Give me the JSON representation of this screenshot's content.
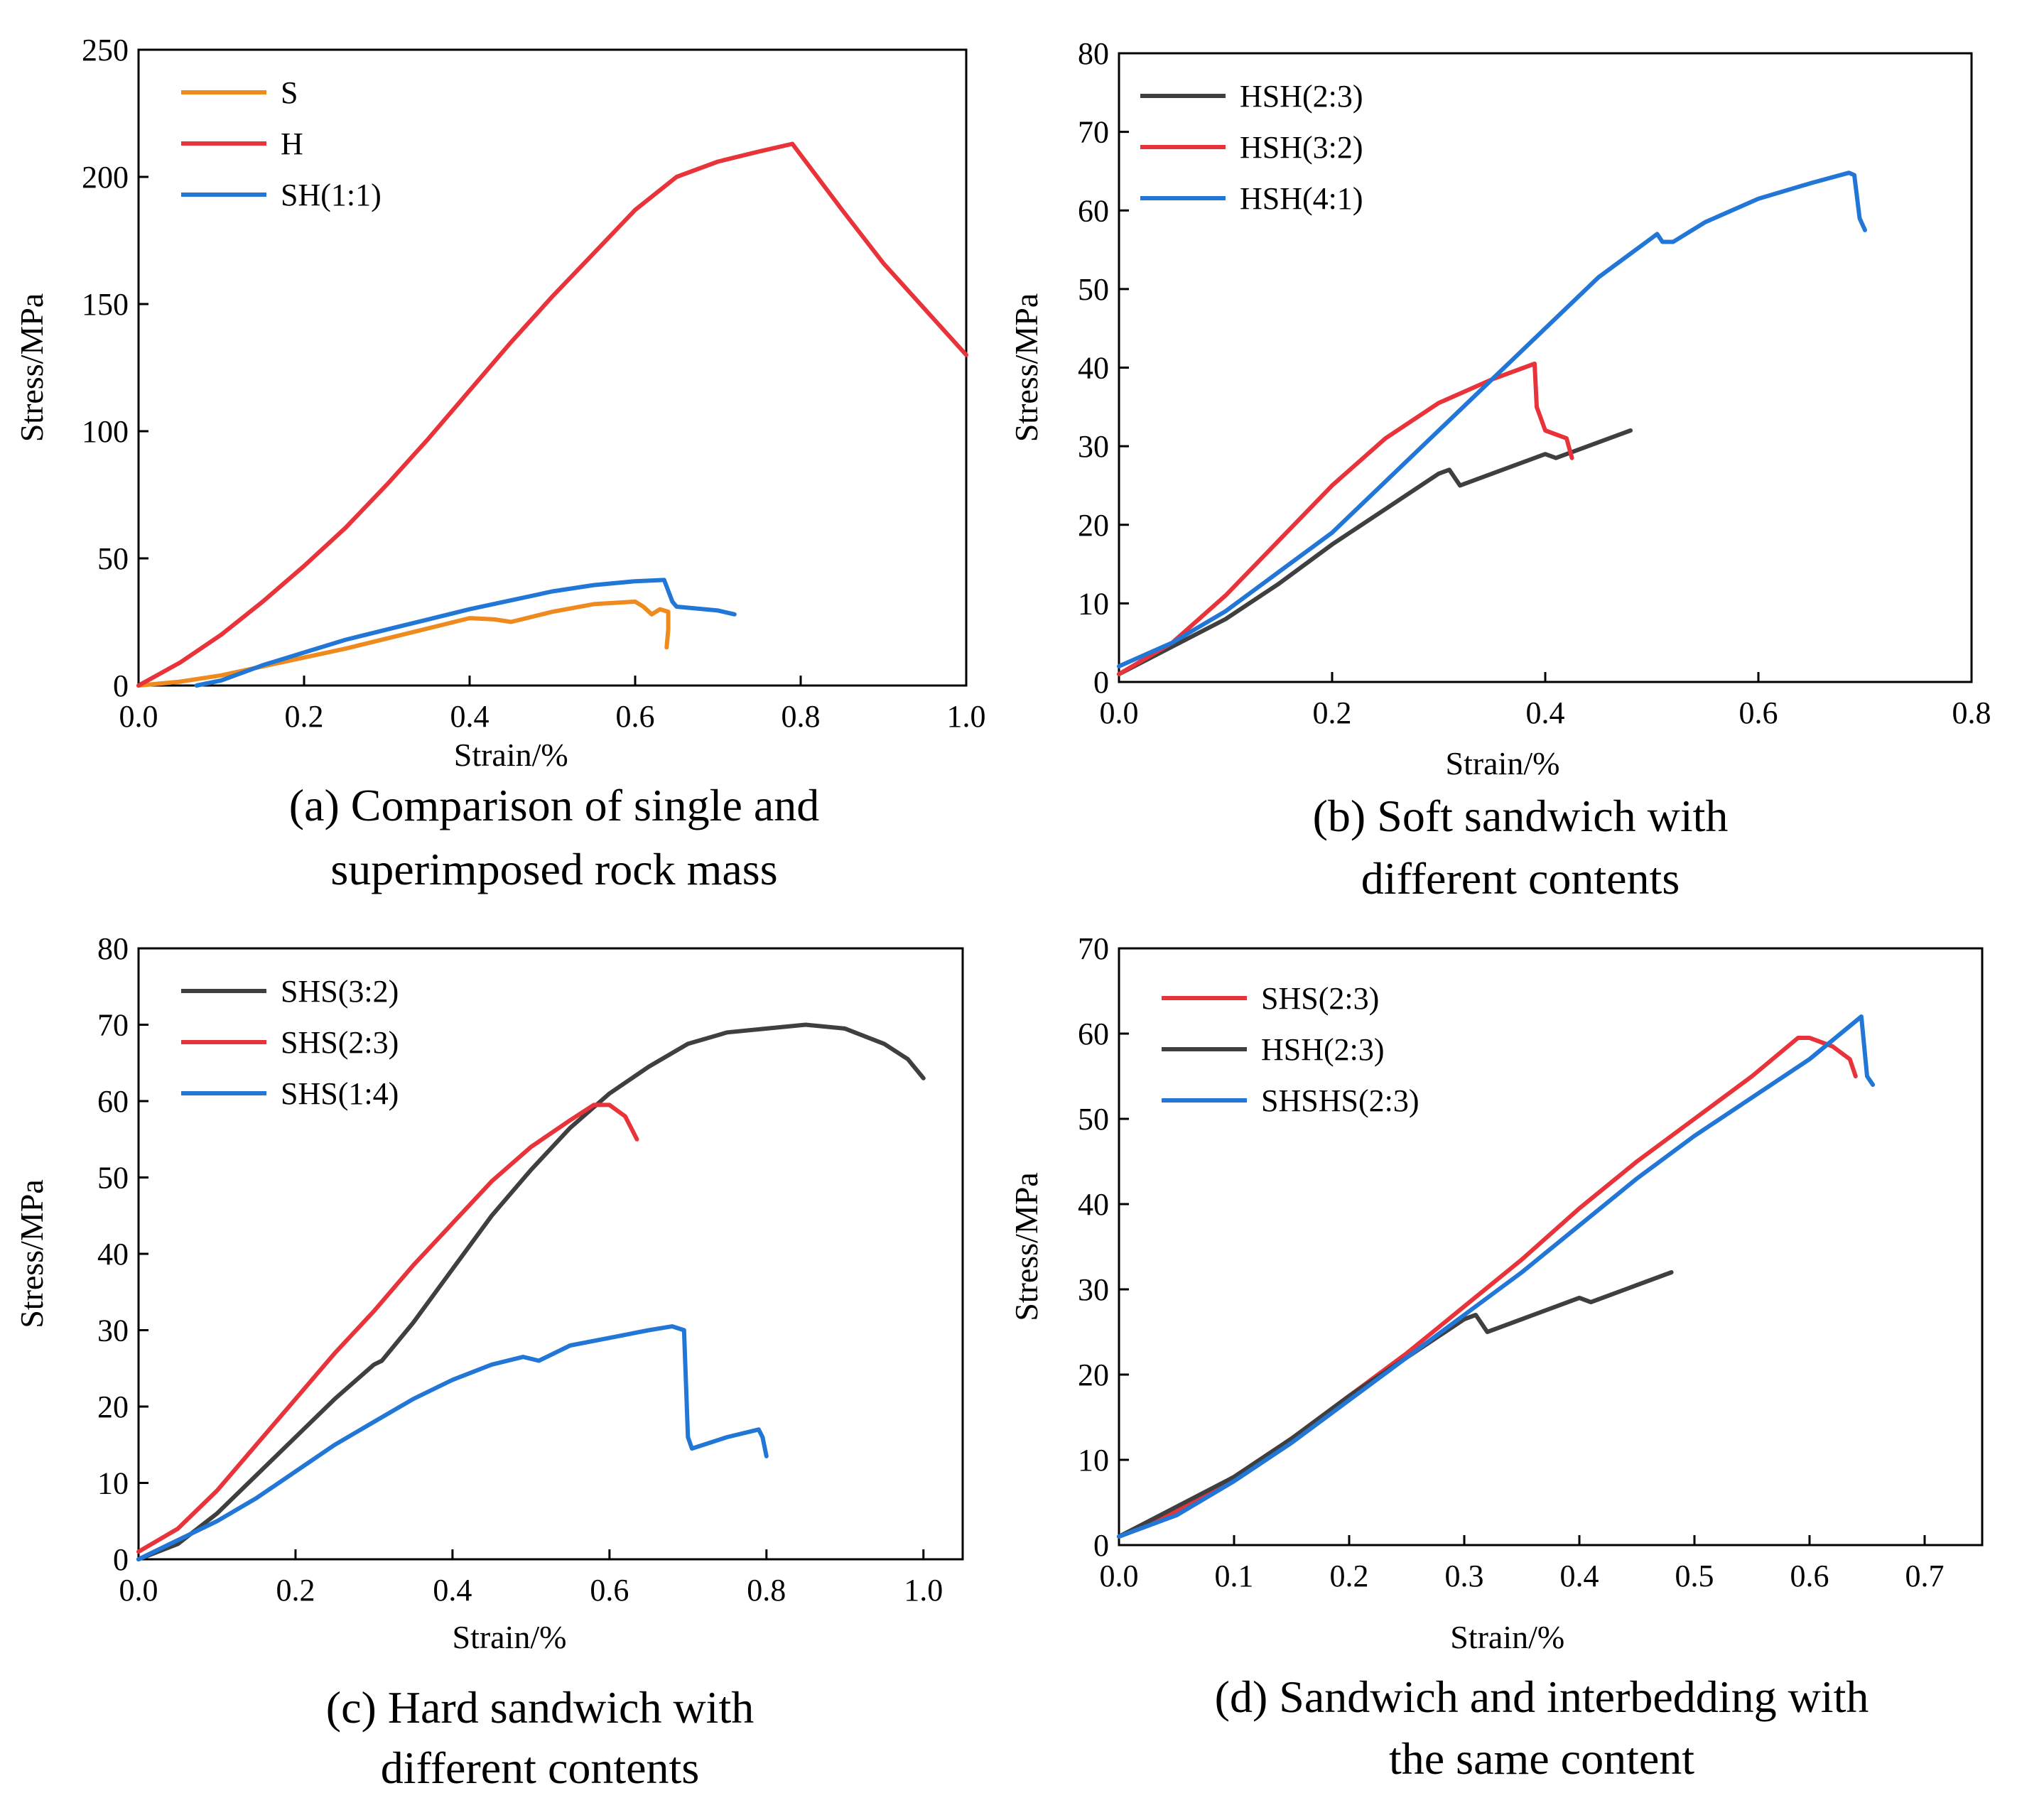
{
  "colors": {
    "orange": "#EE8A1E",
    "red": "#E8333A",
    "blue": "#2176D6",
    "gray": "#3F3F3F"
  },
  "chart_data": [
    {
      "type": "line",
      "caption": [
        "(a) Comparison of single and",
        "superimposed rock mass"
      ],
      "xlabel": "Strain/%",
      "ylabel": "Stress/MPa",
      "xlim": [
        0,
        1.0
      ],
      "ylim": [
        0,
        250
      ],
      "xticks": [
        "0.0",
        "0.2",
        "0.4",
        "0.6",
        "0.8",
        "1.0"
      ],
      "yticks": [
        "0",
        "50",
        "100",
        "150",
        "200",
        "250"
      ],
      "legend": "top-left",
      "series": [
        {
          "name": "S",
          "color": "orange",
          "points": [
            [
              0,
              0
            ],
            [
              0.05,
              1.5
            ],
            [
              0.1,
              4
            ],
            [
              0.15,
              7.5
            ],
            [
              0.2,
              11
            ],
            [
              0.25,
              14.5
            ],
            [
              0.3,
              18.5
            ],
            [
              0.35,
              22.5
            ],
            [
              0.4,
              26.5
            ],
            [
              0.43,
              26
            ],
            [
              0.45,
              25
            ],
            [
              0.5,
              29
            ],
            [
              0.55,
              32
            ],
            [
              0.6,
              33
            ],
            [
              0.61,
              31
            ],
            [
              0.62,
              28
            ],
            [
              0.63,
              30
            ],
            [
              0.64,
              29
            ],
            [
              0.64,
              22
            ],
            [
              0.638,
              15
            ]
          ]
        },
        {
          "name": "H",
          "color": "red",
          "points": [
            [
              0,
              0
            ],
            [
              0.05,
              9
            ],
            [
              0.1,
              20
            ],
            [
              0.15,
              33
            ],
            [
              0.2,
              47
            ],
            [
              0.25,
              62
            ],
            [
              0.3,
              79
            ],
            [
              0.35,
              97
            ],
            [
              0.4,
              116
            ],
            [
              0.45,
              135
            ],
            [
              0.5,
              153
            ],
            [
              0.55,
              170
            ],
            [
              0.6,
              187
            ],
            [
              0.65,
              200
            ],
            [
              0.7,
              206
            ],
            [
              0.75,
              210
            ],
            [
              0.79,
              213
            ],
            [
              0.85,
              187
            ],
            [
              0.9,
              166
            ],
            [
              0.95,
              148
            ],
            [
              1.0,
              130
            ]
          ]
        },
        {
          "name": "SH(1:1)",
          "color": "blue",
          "points": [
            [
              0.07,
              0
            ],
            [
              0.1,
              2
            ],
            [
              0.15,
              8
            ],
            [
              0.2,
              13
            ],
            [
              0.25,
              18
            ],
            [
              0.3,
              22
            ],
            [
              0.35,
              26
            ],
            [
              0.4,
              30
            ],
            [
              0.45,
              33.5
            ],
            [
              0.5,
              37
            ],
            [
              0.55,
              39.5
            ],
            [
              0.6,
              41
            ],
            [
              0.635,
              41.5
            ],
            [
              0.645,
              33
            ],
            [
              0.65,
              31
            ],
            [
              0.7,
              29.5
            ],
            [
              0.72,
              28
            ]
          ]
        }
      ]
    },
    {
      "type": "line",
      "caption": [
        "(b) Soft sandwich with",
        "different contents"
      ],
      "xlabel": "Strain/%",
      "ylabel": "Stress/MPa",
      "xlim": [
        0,
        0.8
      ],
      "ylim": [
        0,
        80
      ],
      "xticks": [
        "0.0",
        "0.2",
        "0.4",
        "0.6",
        "0.8"
      ],
      "yticks": [
        "0",
        "10",
        "20",
        "30",
        "40",
        "50",
        "60",
        "70",
        "80"
      ],
      "legend": "top-left",
      "series": [
        {
          "name": "HSH(2:3)",
          "color": "gray",
          "points": [
            [
              0,
              1
            ],
            [
              0.05,
              4.5
            ],
            [
              0.1,
              8
            ],
            [
              0.15,
              12.5
            ],
            [
              0.2,
              17.5
            ],
            [
              0.25,
              22
            ],
            [
              0.3,
              26.5
            ],
            [
              0.31,
              27
            ],
            [
              0.32,
              25
            ],
            [
              0.35,
              26.5
            ],
            [
              0.4,
              29
            ],
            [
              0.41,
              28.5
            ],
            [
              0.45,
              30.5
            ],
            [
              0.48,
              32
            ]
          ]
        },
        {
          "name": "HSH(3:2)",
          "color": "red",
          "points": [
            [
              0,
              1
            ],
            [
              0.05,
              5
            ],
            [
              0.1,
              11
            ],
            [
              0.15,
              18
            ],
            [
              0.2,
              25
            ],
            [
              0.25,
              31
            ],
            [
              0.3,
              35.5
            ],
            [
              0.35,
              38.5
            ],
            [
              0.38,
              40
            ],
            [
              0.39,
              40.5
            ],
            [
              0.392,
              35
            ],
            [
              0.4,
              32
            ],
            [
              0.41,
              31.5
            ],
            [
              0.42,
              31
            ],
            [
              0.425,
              28.5
            ]
          ]
        },
        {
          "name": "HSH(4:1)",
          "color": "blue",
          "points": [
            [
              0,
              2
            ],
            [
              0.05,
              5
            ],
            [
              0.1,
              9
            ],
            [
              0.15,
              14
            ],
            [
              0.2,
              19
            ],
            [
              0.25,
              25.5
            ],
            [
              0.3,
              32
            ],
            [
              0.35,
              38.5
            ],
            [
              0.4,
              45
            ],
            [
              0.45,
              51.5
            ],
            [
              0.5,
              56.5
            ],
            [
              0.505,
              57
            ],
            [
              0.51,
              56
            ],
            [
              0.52,
              56
            ],
            [
              0.55,
              58.5
            ],
            [
              0.6,
              61.5
            ],
            [
              0.65,
              63.5
            ],
            [
              0.685,
              64.8
            ],
            [
              0.69,
              64.5
            ],
            [
              0.695,
              59
            ],
            [
              0.7,
              57.5
            ]
          ]
        }
      ]
    },
    {
      "type": "line",
      "caption": [
        "(c) Hard sandwich with",
        "different contents"
      ],
      "xlabel": "Strain/%",
      "ylabel": "Stress/MPa",
      "xlim": [
        0,
        1.05
      ],
      "ylim": [
        0,
        80
      ],
      "xticks": [
        "0.0",
        "0.2",
        "0.4",
        "0.6",
        "0.8",
        "1.0"
      ],
      "yticks": [
        "0",
        "10",
        "20",
        "30",
        "40",
        "50",
        "60",
        "70",
        "80"
      ],
      "legend": "top-left",
      "series": [
        {
          "name": "SHS(3:2)",
          "color": "gray",
          "points": [
            [
              0,
              0
            ],
            [
              0.05,
              2
            ],
            [
              0.1,
              6
            ],
            [
              0.15,
              11
            ],
            [
              0.2,
              16
            ],
            [
              0.25,
              21
            ],
            [
              0.3,
              25.5
            ],
            [
              0.31,
              26
            ],
            [
              0.35,
              31
            ],
            [
              0.4,
              38
            ],
            [
              0.45,
              45
            ],
            [
              0.5,
              51
            ],
            [
              0.55,
              56.5
            ],
            [
              0.6,
              61
            ],
            [
              0.65,
              64.5
            ],
            [
              0.7,
              67.5
            ],
            [
              0.75,
              69
            ],
            [
              0.8,
              69.5
            ],
            [
              0.85,
              70
            ],
            [
              0.9,
              69.5
            ],
            [
              0.95,
              67.5
            ],
            [
              0.98,
              65.5
            ],
            [
              1.0,
              63
            ]
          ]
        },
        {
          "name": "SHS(2:3)",
          "color": "red",
          "points": [
            [
              0,
              1
            ],
            [
              0.05,
              4
            ],
            [
              0.1,
              9
            ],
            [
              0.15,
              15
            ],
            [
              0.2,
              21
            ],
            [
              0.25,
              27
            ],
            [
              0.3,
              32.5
            ],
            [
              0.35,
              38.5
            ],
            [
              0.4,
              44
            ],
            [
              0.45,
              49.5
            ],
            [
              0.5,
              54
            ],
            [
              0.55,
              57.5
            ],
            [
              0.58,
              59.5
            ],
            [
              0.6,
              59.5
            ],
            [
              0.62,
              58
            ],
            [
              0.63,
              56
            ],
            [
              0.635,
              55
            ]
          ]
        },
        {
          "name": "SHS(1:4)",
          "color": "blue",
          "points": [
            [
              0,
              0
            ],
            [
              0.05,
              2.5
            ],
            [
              0.1,
              5
            ],
            [
              0.15,
              8
            ],
            [
              0.2,
              11.5
            ],
            [
              0.25,
              15
            ],
            [
              0.3,
              18
            ],
            [
              0.35,
              21
            ],
            [
              0.4,
              23.5
            ],
            [
              0.45,
              25.5
            ],
            [
              0.49,
              26.5
            ],
            [
              0.51,
              26
            ],
            [
              0.55,
              28
            ],
            [
              0.6,
              29
            ],
            [
              0.65,
              30
            ],
            [
              0.68,
              30.5
            ],
            [
              0.695,
              30
            ],
            [
              0.7,
              16
            ],
            [
              0.705,
              14.5
            ],
            [
              0.75,
              16
            ],
            [
              0.79,
              17
            ],
            [
              0.795,
              16
            ],
            [
              0.8,
              13.5
            ]
          ]
        }
      ]
    },
    {
      "type": "line",
      "caption": [
        "(d) Sandwich and interbedding with",
        "the same content"
      ],
      "xlabel": "Strain/%",
      "ylabel": "Stress/MPa",
      "xlim": [
        0,
        0.75
      ],
      "ylim": [
        0,
        70
      ],
      "xticks": [
        "0.0",
        "0.1",
        "0.2",
        "0.3",
        "0.4",
        "0.5",
        "0.6",
        "0.7"
      ],
      "yticks": [
        "0",
        "10",
        "20",
        "30",
        "40",
        "50",
        "60",
        "70"
      ],
      "legend": "top-left",
      "series": [
        {
          "name": "SHS(2:3)",
          "color": "red",
          "points": [
            [
              0,
              1
            ],
            [
              0.05,
              4
            ],
            [
              0.1,
              8
            ],
            [
              0.15,
              12.5
            ],
            [
              0.2,
              17.5
            ],
            [
              0.25,
              22.5
            ],
            [
              0.3,
              28
            ],
            [
              0.35,
              33.5
            ],
            [
              0.4,
              39.5
            ],
            [
              0.45,
              45
            ],
            [
              0.5,
              50
            ],
            [
              0.55,
              55
            ],
            [
              0.59,
              59.5
            ],
            [
              0.6,
              59.5
            ],
            [
              0.62,
              58.5
            ],
            [
              0.635,
              57
            ],
            [
              0.64,
              55
            ]
          ]
        },
        {
          "name": "HSH(2:3)",
          "color": "gray",
          "points": [
            [
              0,
              1
            ],
            [
              0.05,
              4.5
            ],
            [
              0.1,
              8
            ],
            [
              0.15,
              12.5
            ],
            [
              0.2,
              17.5
            ],
            [
              0.25,
              22
            ],
            [
              0.3,
              26.5
            ],
            [
              0.31,
              27
            ],
            [
              0.32,
              25
            ],
            [
              0.35,
              26.5
            ],
            [
              0.4,
              29
            ],
            [
              0.41,
              28.5
            ],
            [
              0.45,
              30.5
            ],
            [
              0.48,
              32
            ]
          ]
        },
        {
          "name": "SHSHS(2:3)",
          "color": "blue",
          "points": [
            [
              0,
              1
            ],
            [
              0.05,
              3.5
            ],
            [
              0.1,
              7.5
            ],
            [
              0.15,
              12
            ],
            [
              0.2,
              17
            ],
            [
              0.25,
              22
            ],
            [
              0.3,
              27
            ],
            [
              0.35,
              32
            ],
            [
              0.4,
              37.5
            ],
            [
              0.45,
              43
            ],
            [
              0.5,
              48
            ],
            [
              0.55,
              52.5
            ],
            [
              0.6,
              57
            ],
            [
              0.645,
              62
            ],
            [
              0.65,
              55
            ],
            [
              0.655,
              54
            ]
          ]
        }
      ]
    }
  ]
}
